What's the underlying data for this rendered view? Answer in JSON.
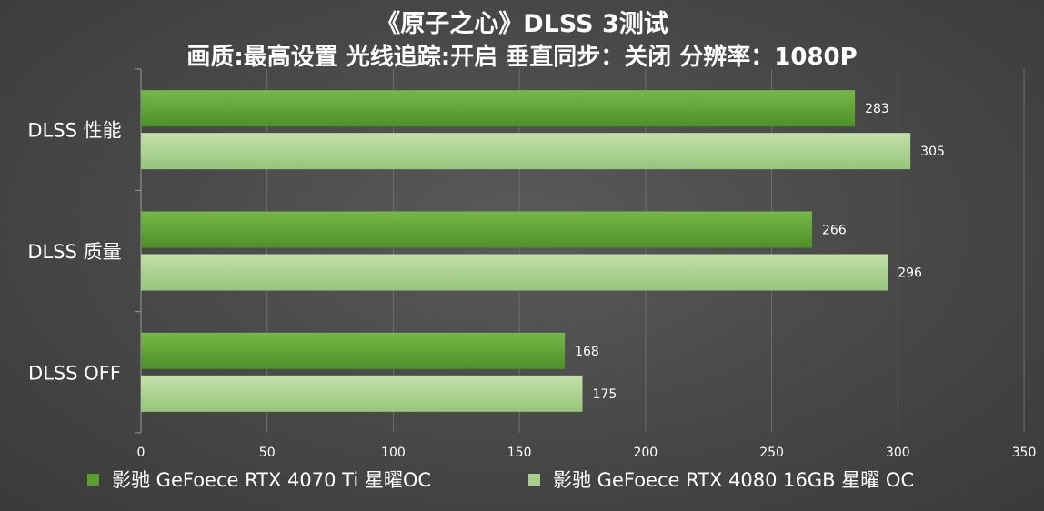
{
  "chart_data": {
    "type": "bar",
    "orientation": "horizontal",
    "title": "《原子之心》DLSS 3测试",
    "subtitle": "画质:最高设置 光线追踪:开启  垂直同步：关闭 分辨率：1080P",
    "categories": [
      "DLSS 性能",
      "DLSS 质量",
      "DLSS OFF"
    ],
    "series": [
      {
        "name": "影驰 GeFoece RTX 4070 Ti 星曜OC",
        "color": "#5a9e2f",
        "values": [
          283,
          266,
          168
        ]
      },
      {
        "name": "影驰 GeFoece  RTX 4080 16GB 星曜 OC",
        "color": "#a8d08d",
        "values": [
          305,
          296,
          175
        ]
      }
    ],
    "xlim": [
      0,
      350
    ],
    "xticks": [
      0,
      50,
      100,
      150,
      200,
      250,
      300,
      350
    ],
    "grid": true,
    "data_labels": true,
    "legend_position": "bottom"
  }
}
